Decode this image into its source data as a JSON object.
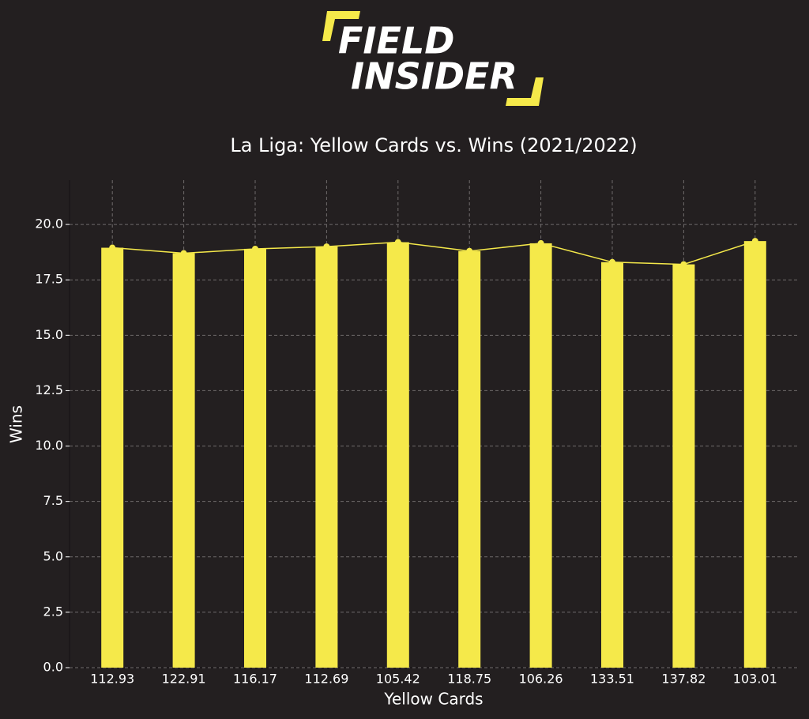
{
  "logo": {
    "lines": [
      "FIELD",
      "INSIDER"
    ]
  },
  "chart_data": {
    "type": "bar",
    "title": "La Liga: Yellow Cards vs. Wins (2021/2022)",
    "x_label": "Yellow Cards",
    "y_label": "Wins",
    "categories": [
      "112.93",
      "122.91",
      "116.17",
      "112.69",
      "105.42",
      "118.75",
      "106.26",
      "133.51",
      "137.82",
      "103.01"
    ],
    "values": [
      18.95,
      18.7,
      18.9,
      19.0,
      19.2,
      18.8,
      19.15,
      18.3,
      18.2,
      19.25
    ],
    "color": "#f5e94a",
    "line_overlay": true,
    "grid": true,
    "ylim": [
      0,
      22
    ],
    "yticks": [
      {
        "value": 0,
        "label": "0.0"
      },
      {
        "value": 2.5,
        "label": "2.5"
      },
      {
        "value": 5,
        "label": "5.0"
      },
      {
        "value": 7.5,
        "label": "7.5"
      },
      {
        "value": 10,
        "label": "10.0"
      },
      {
        "value": 12.5,
        "label": "12.5"
      },
      {
        "value": 15,
        "label": "15.0"
      },
      {
        "value": 17.5,
        "label": "17.5"
      },
      {
        "value": 20,
        "label": "20.0"
      }
    ]
  }
}
